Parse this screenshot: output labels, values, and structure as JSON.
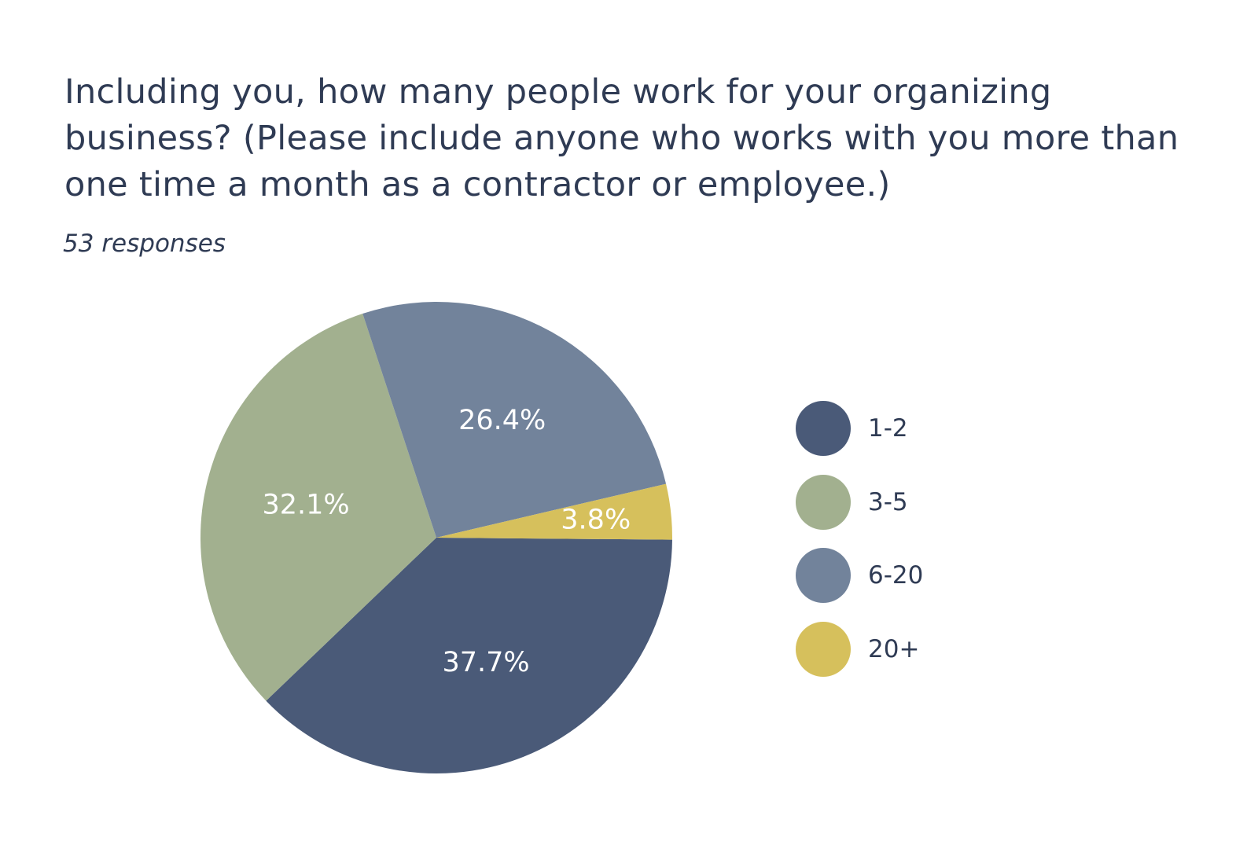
{
  "chart_data": {
    "type": "pie",
    "title": "Including you, how many people work for your organizing business? (Please include anyone who works with you more than one time a month as a contractor or employee.)",
    "subtitle": "53 responses",
    "categories": [
      "1-2",
      "3-5",
      "6-20",
      "20+"
    ],
    "values": [
      37.7,
      32.1,
      26.4,
      3.8
    ],
    "labels": [
      "37.7%",
      "32.1%",
      "26.4%",
      "3.8%"
    ],
    "colors": [
      "#4a5a78",
      "#a2b08f",
      "#72839b",
      "#d6c05c"
    ],
    "legend_position": "right"
  }
}
